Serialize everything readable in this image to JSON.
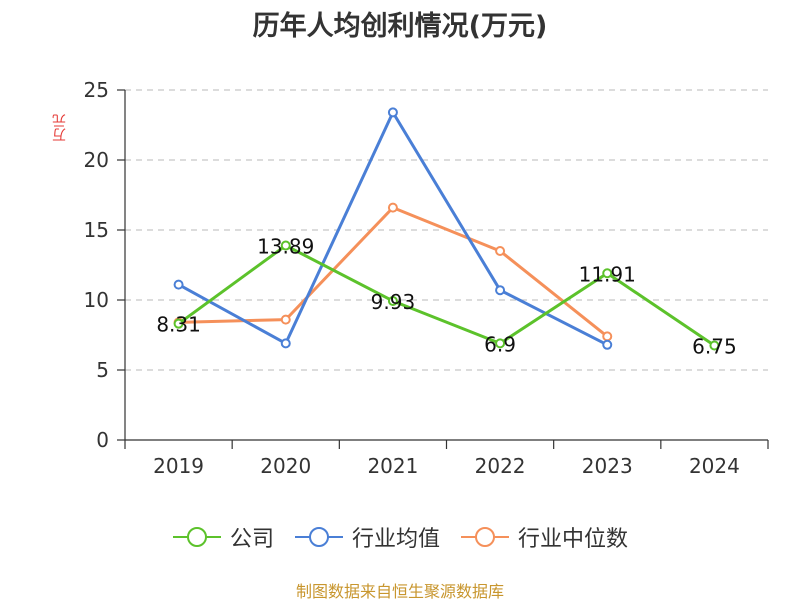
{
  "chart_data": {
    "type": "line",
    "title": "历年人均创利情况(万元)",
    "ylabel": "万元",
    "xlabel": "",
    "categories": [
      "2019",
      "2020",
      "2021",
      "2022",
      "2023",
      "2024"
    ],
    "ylim": [
      0,
      25
    ],
    "yticks": [
      0,
      5,
      10,
      15,
      20,
      25
    ],
    "grid": true,
    "legend_position": "bottom",
    "series": [
      {
        "name": "公司",
        "color": "#5cc22b",
        "values": [
          8.31,
          13.89,
          9.93,
          6.9,
          11.91,
          6.75
        ],
        "labels": [
          "8.31",
          "13.89",
          "9.93",
          "6.9",
          "11.91",
          "6.75"
        ]
      },
      {
        "name": "行业均值",
        "color": "#4a7fd6",
        "values": [
          11.1,
          6.9,
          23.4,
          10.7,
          6.8,
          null
        ]
      },
      {
        "name": "行业中位数",
        "color": "#f5905a",
        "values": [
          8.4,
          8.6,
          16.6,
          13.5,
          7.4,
          null
        ]
      }
    ]
  },
  "source_text": "制图数据来自恒生聚源数据库"
}
